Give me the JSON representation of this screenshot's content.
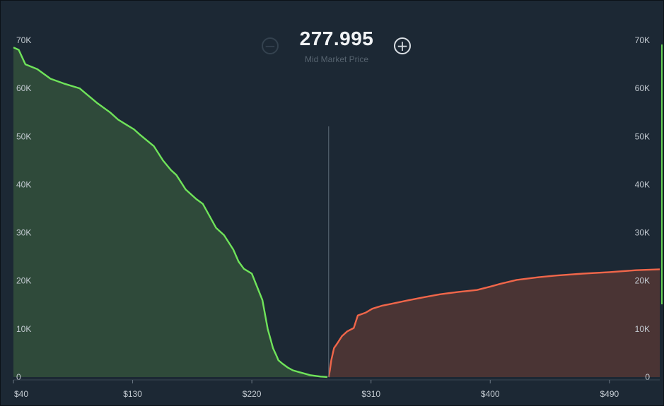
{
  "header": {
    "price": "277.995",
    "price_label": "Mid Market Price",
    "zoom_out_icon": "minus-circle-icon",
    "zoom_in_icon": "plus-circle-icon"
  },
  "colors": {
    "background": "#1c2834",
    "bid_line": "#6fe35a",
    "bid_fill": "#2f4a3a",
    "ask_line": "#f0664a",
    "ask_fill": "#4a3434",
    "mid_line": "#56636f"
  },
  "chart_data": {
    "type": "area",
    "title": "",
    "xlabel": "",
    "ylabel": "",
    "x_ticks": [
      "$40",
      "$130",
      "$220",
      "$310",
      "$400",
      "$490"
    ],
    "x_tick_values": [
      40,
      130,
      220,
      310,
      400,
      490
    ],
    "y_ticks_left": [
      "0",
      "10K",
      "20K",
      "30K",
      "40K",
      "50K",
      "60K",
      "70K"
    ],
    "y_ticks_right": [
      "0",
      "10K",
      "20K",
      "30K",
      "40K",
      "50K",
      "60K",
      "70K"
    ],
    "y_tick_values": [
      0,
      10000,
      20000,
      30000,
      40000,
      50000,
      60000,
      70000
    ],
    "xlim": [
      40,
      528
    ],
    "ylim": [
      0,
      70000
    ],
    "mid_price": 277.995,
    "series": [
      {
        "key": "bids",
        "x": [
          40,
          44,
          49,
          58,
          68,
          78,
          90,
          103,
          113,
          119,
          125,
          131,
          135,
          146,
          153,
          159,
          163,
          170,
          178,
          183,
          188,
          193,
          199,
          206,
          210,
          214,
          220,
          228,
          232,
          236,
          239,
          240,
          243,
          247,
          251,
          256,
          260,
          264,
          268,
          272,
          276,
          277
        ],
        "y": [
          68500,
          68000,
          65000,
          64000,
          62000,
          61000,
          60000,
          57000,
          55000,
          53500,
          52500,
          51500,
          50500,
          48000,
          45000,
          43000,
          42000,
          39000,
          37000,
          36000,
          33500,
          31000,
          29500,
          26500,
          24000,
          22500,
          21500,
          16000,
          10000,
          6000,
          4200,
          3500,
          2800,
          2000,
          1400,
          1000,
          700,
          400,
          250,
          100,
          30,
          0
        ]
      },
      {
        "key": "asks",
        "x": [
          278,
          279,
          280,
          282,
          285,
          288,
          292,
          297,
          300,
          306,
          311,
          318,
          325,
          337,
          350,
          362,
          376,
          390,
          400,
          408,
          420,
          435,
          450,
          470,
          490,
          510,
          528
        ],
        "y": [
          0,
          1500,
          3500,
          6000,
          7200,
          8500,
          9500,
          10200,
          12800,
          13400,
          14200,
          14800,
          15200,
          15900,
          16600,
          17200,
          17700,
          18100,
          18800,
          19400,
          20200,
          20700,
          21100,
          21500,
          21800,
          22200,
          22400
        ]
      }
    ]
  }
}
